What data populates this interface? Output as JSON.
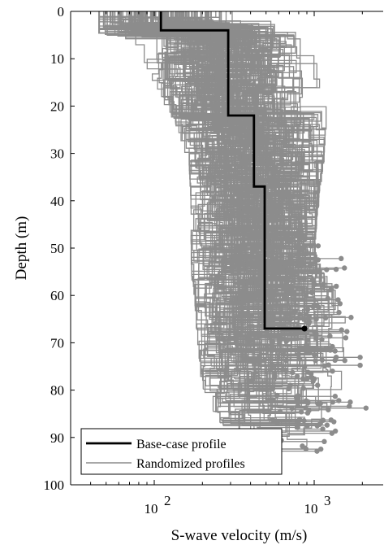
{
  "chart_data": {
    "type": "line",
    "xlabel": "S-wave velocity (m/s)",
    "ylabel": "Depth (m)",
    "x_scale": "log",
    "y_inverted": true,
    "xlim": [
      30,
      2700
    ],
    "ylim": [
      0,
      100
    ],
    "x_ticks": [
      100,
      1000
    ],
    "x_tick_labels": [
      {
        "base": "10",
        "exp": "2"
      },
      {
        "base": "10",
        "exp": "3"
      }
    ],
    "y_ticks": [
      0,
      10,
      20,
      30,
      40,
      50,
      60,
      70,
      80,
      90,
      100
    ],
    "y_tick_labels": [
      "0",
      "10",
      "20",
      "30",
      "40",
      "50",
      "60",
      "70",
      "80",
      "90",
      "100"
    ],
    "grid": false,
    "legend_position": "bottom-left",
    "colors": {
      "base_case": "#000000",
      "randomized": "#8c8c8c"
    },
    "series": [
      {
        "name": "Base-case profile",
        "style": "thick-black-step",
        "layers": [
          {
            "top": 0,
            "bottom": 4,
            "vs": 110
          },
          {
            "top": 4,
            "bottom": 22,
            "vs": 290
          },
          {
            "top": 22,
            "bottom": 37,
            "vs": 420
          },
          {
            "top": 37,
            "bottom": 67,
            "vs": 490
          }
        ],
        "halfspace": {
          "depth": 67,
          "vs": 870
        }
      },
      {
        "name": "Randomized profiles",
        "style": "thin-gray-step",
        "envelope": {
          "depth": [
            0,
            4,
            10,
            20,
            30,
            40,
            50,
            55,
            60,
            67,
            75,
            80,
            85,
            88
          ],
          "vs_min": [
            45,
            45,
            75,
            130,
            165,
            170,
            170,
            172,
            180,
            185,
            195,
            210,
            250,
            280
          ],
          "vs_max": [
            420,
            620,
            950,
            1200,
            1150,
            1050,
            1000,
            1050,
            1300,
            1700,
            1600,
            1400,
            1100,
            900
          ]
        },
        "halfspace_depth_range": [
          47,
          93
        ],
        "halfspace_vs_range": [
          550,
          2400
        ]
      }
    ]
  }
}
